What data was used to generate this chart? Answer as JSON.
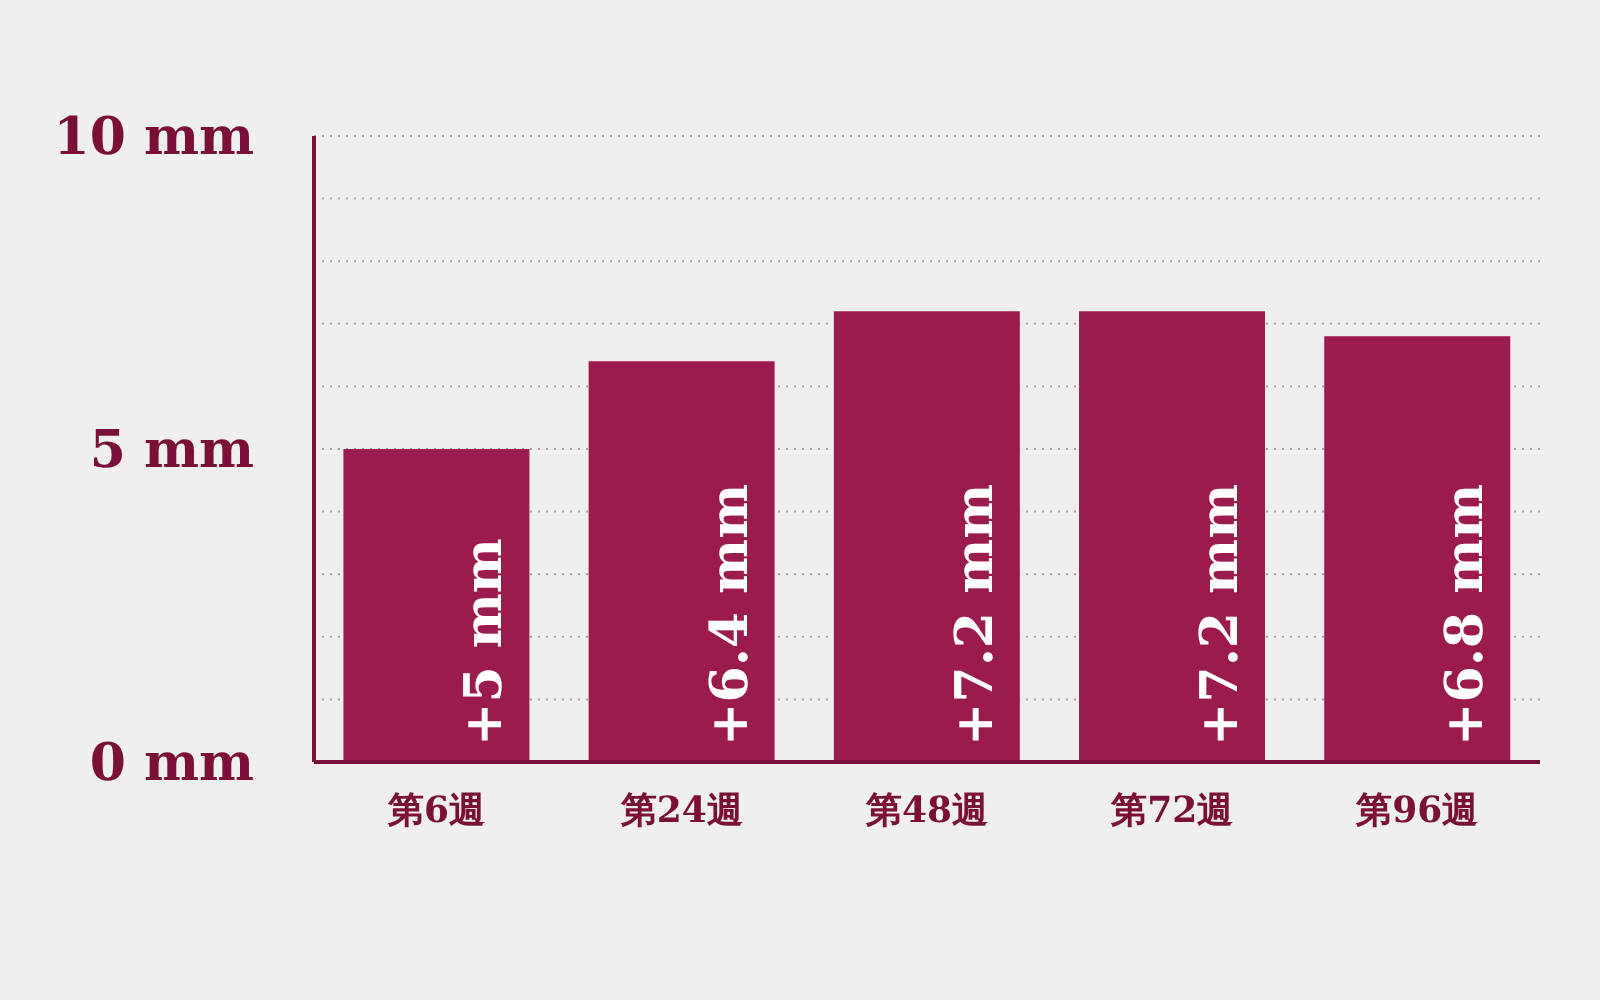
{
  "chart_data": {
    "type": "bar",
    "categories": [
      "第6週",
      "第24週",
      "第48週",
      "第72週",
      "第96週"
    ],
    "values": [
      5,
      6.4,
      7.2,
      7.2,
      6.8
    ],
    "color": "#9b1b4f",
    "value_labels": [
      "+5 mm",
      "+6.4 mm",
      "+7.2 mm",
      "+7.2 mm",
      "+6.8 mm"
    ],
    "ylim": [
      0,
      10
    ],
    "yticks": [
      {
        "value": 0,
        "label": "0 mm"
      },
      {
        "value": 1,
        "label": null
      },
      {
        "value": 2,
        "label": null
      },
      {
        "value": 3,
        "label": null
      },
      {
        "value": 4,
        "label": null
      },
      {
        "value": 5,
        "label": "5 mm"
      },
      {
        "value": 6,
        "label": null
      },
      {
        "value": 7,
        "label": null
      },
      {
        "value": 8,
        "label": null
      },
      {
        "value": 9,
        "label": null
      },
      {
        "value": 10,
        "label": "10 mm"
      }
    ],
    "grid": "y"
  }
}
